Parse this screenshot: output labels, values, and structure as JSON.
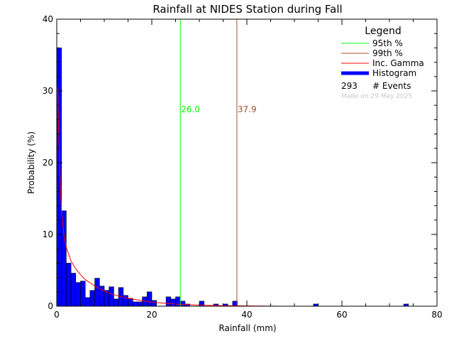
{
  "chart_data": {
    "type": "bar",
    "title": "Rainfall at NIDES Station during Fall",
    "xlabel": "Rainfall (mm)",
    "ylabel": "Probability (%)",
    "xlim": [
      0,
      80
    ],
    "ylim": [
      0,
      40
    ],
    "x_ticks": [
      "0",
      "20",
      "40",
      "60",
      "80"
    ],
    "y_ticks": [
      "0",
      "10",
      "20",
      "30",
      "40"
    ],
    "bin_width": 1,
    "histogram": {
      "name": "Histogram",
      "color": "#0000ff",
      "bin_starts": [
        0,
        1,
        2,
        3,
        4,
        5,
        6,
        7,
        8,
        9,
        10,
        11,
        12,
        13,
        14,
        15,
        16,
        17,
        18,
        19,
        20,
        23,
        24,
        25,
        26,
        27,
        30,
        33,
        35,
        37,
        54,
        73
      ],
      "values": [
        36.0,
        13.3,
        6.0,
        4.6,
        3.3,
        3.5,
        1.2,
        2.2,
        3.9,
        2.8,
        2.2,
        2.7,
        1.0,
        2.6,
        1.5,
        1.1,
        0.6,
        0.6,
        1.3,
        2.0,
        0.8,
        1.3,
        1.0,
        1.3,
        0.7,
        0.3,
        0.7,
        0.3,
        0.3,
        0.7,
        0.3,
        0.3
      ]
    },
    "gamma_curve": {
      "name": "Inc. Gamma",
      "color": "#ff0000",
      "x": [
        0.2,
        0.4,
        0.6,
        0.8,
        1,
        1.5,
        2,
        3,
        4,
        5,
        6,
        8,
        10,
        12,
        15,
        20,
        25,
        30,
        35,
        40,
        46
      ],
      "y": [
        30.5,
        24.5,
        19.5,
        16.0,
        13.0,
        10.0,
        8.2,
        6.3,
        5.2,
        4.4,
        3.7,
        2.8,
        2.1,
        1.6,
        1.1,
        0.55,
        0.3,
        0.15,
        0.08,
        0.04,
        0.01
      ]
    },
    "percentiles": [
      {
        "name": "95th %",
        "value": 26.0,
        "label": "26.0",
        "color": "#00ff00"
      },
      {
        "name": "99th %",
        "value": 37.9,
        "label": "37.9",
        "color": "#a0522d"
      }
    ],
    "legend": {
      "title": "Legend",
      "position": "top-right",
      "items": [
        {
          "label": "95th %",
          "color": "#00ff00",
          "kind": "line"
        },
        {
          "label": "99th %",
          "color": "#a0522d",
          "kind": "line"
        },
        {
          "label": "Inc. Gamma",
          "color": "#ff0000",
          "kind": "line"
        },
        {
          "label": "Histogram",
          "color": "#0000ff",
          "kind": "thick"
        }
      ],
      "events_count": "293",
      "events_label": "# Events",
      "made_on": "Made on 29 May 2025"
    }
  }
}
